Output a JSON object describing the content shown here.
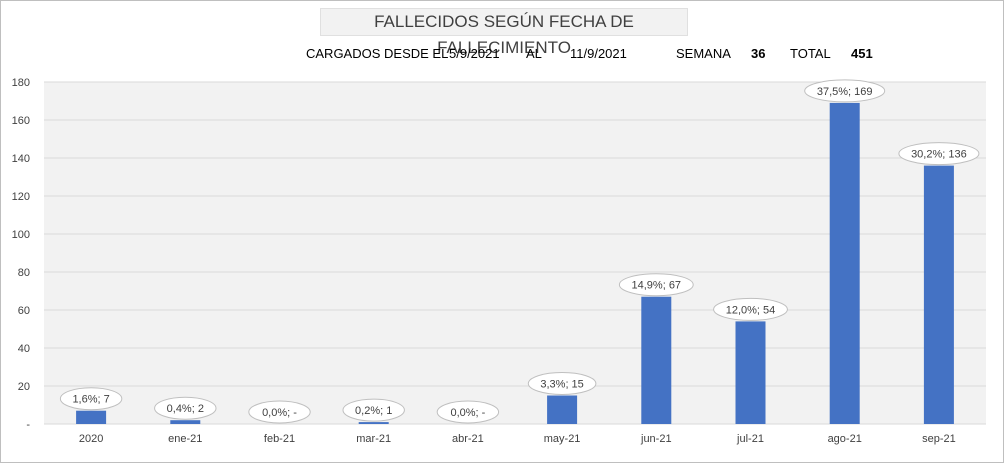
{
  "header": {
    "title": "FALLECIDOS SEGÚN FECHA DE FALLECIMIENTO",
    "loaded_label": "CARGADOS DESDE EL",
    "date_from": "5/9/2021",
    "to_label": "AL",
    "date_to": "11/9/2021",
    "week_label": "SEMANA",
    "week_value": "36",
    "total_label": "TOTAL",
    "total_value": "451"
  },
  "chart_data": {
    "type": "bar",
    "title": "FALLECIDOS SEGÚN FECHA DE FALLECIMIENTO",
    "categories": [
      "2020",
      "ene-21",
      "feb-21",
      "mar-21",
      "abr-21",
      "may-21",
      "jun-21",
      "jul-21",
      "ago-21",
      "sep-21"
    ],
    "values": [
      7,
      2,
      0,
      1,
      0,
      15,
      67,
      54,
      169,
      136
    ],
    "data_labels": [
      "1,6%; 7",
      "0,4%; 2",
      "0,0%; -",
      "0,2%; 1",
      "0,0%; -",
      "3,3%; 15",
      "14,9%; 67",
      "12,0%; 54",
      "37,5%; 169",
      "30,2%; 136"
    ],
    "y_ticks": [
      "-",
      "20",
      "40",
      "60",
      "80",
      "100",
      "120",
      "140",
      "160",
      "180"
    ],
    "ylim": [
      0,
      180
    ],
    "grid": true,
    "bar_color": "#4472c4"
  }
}
